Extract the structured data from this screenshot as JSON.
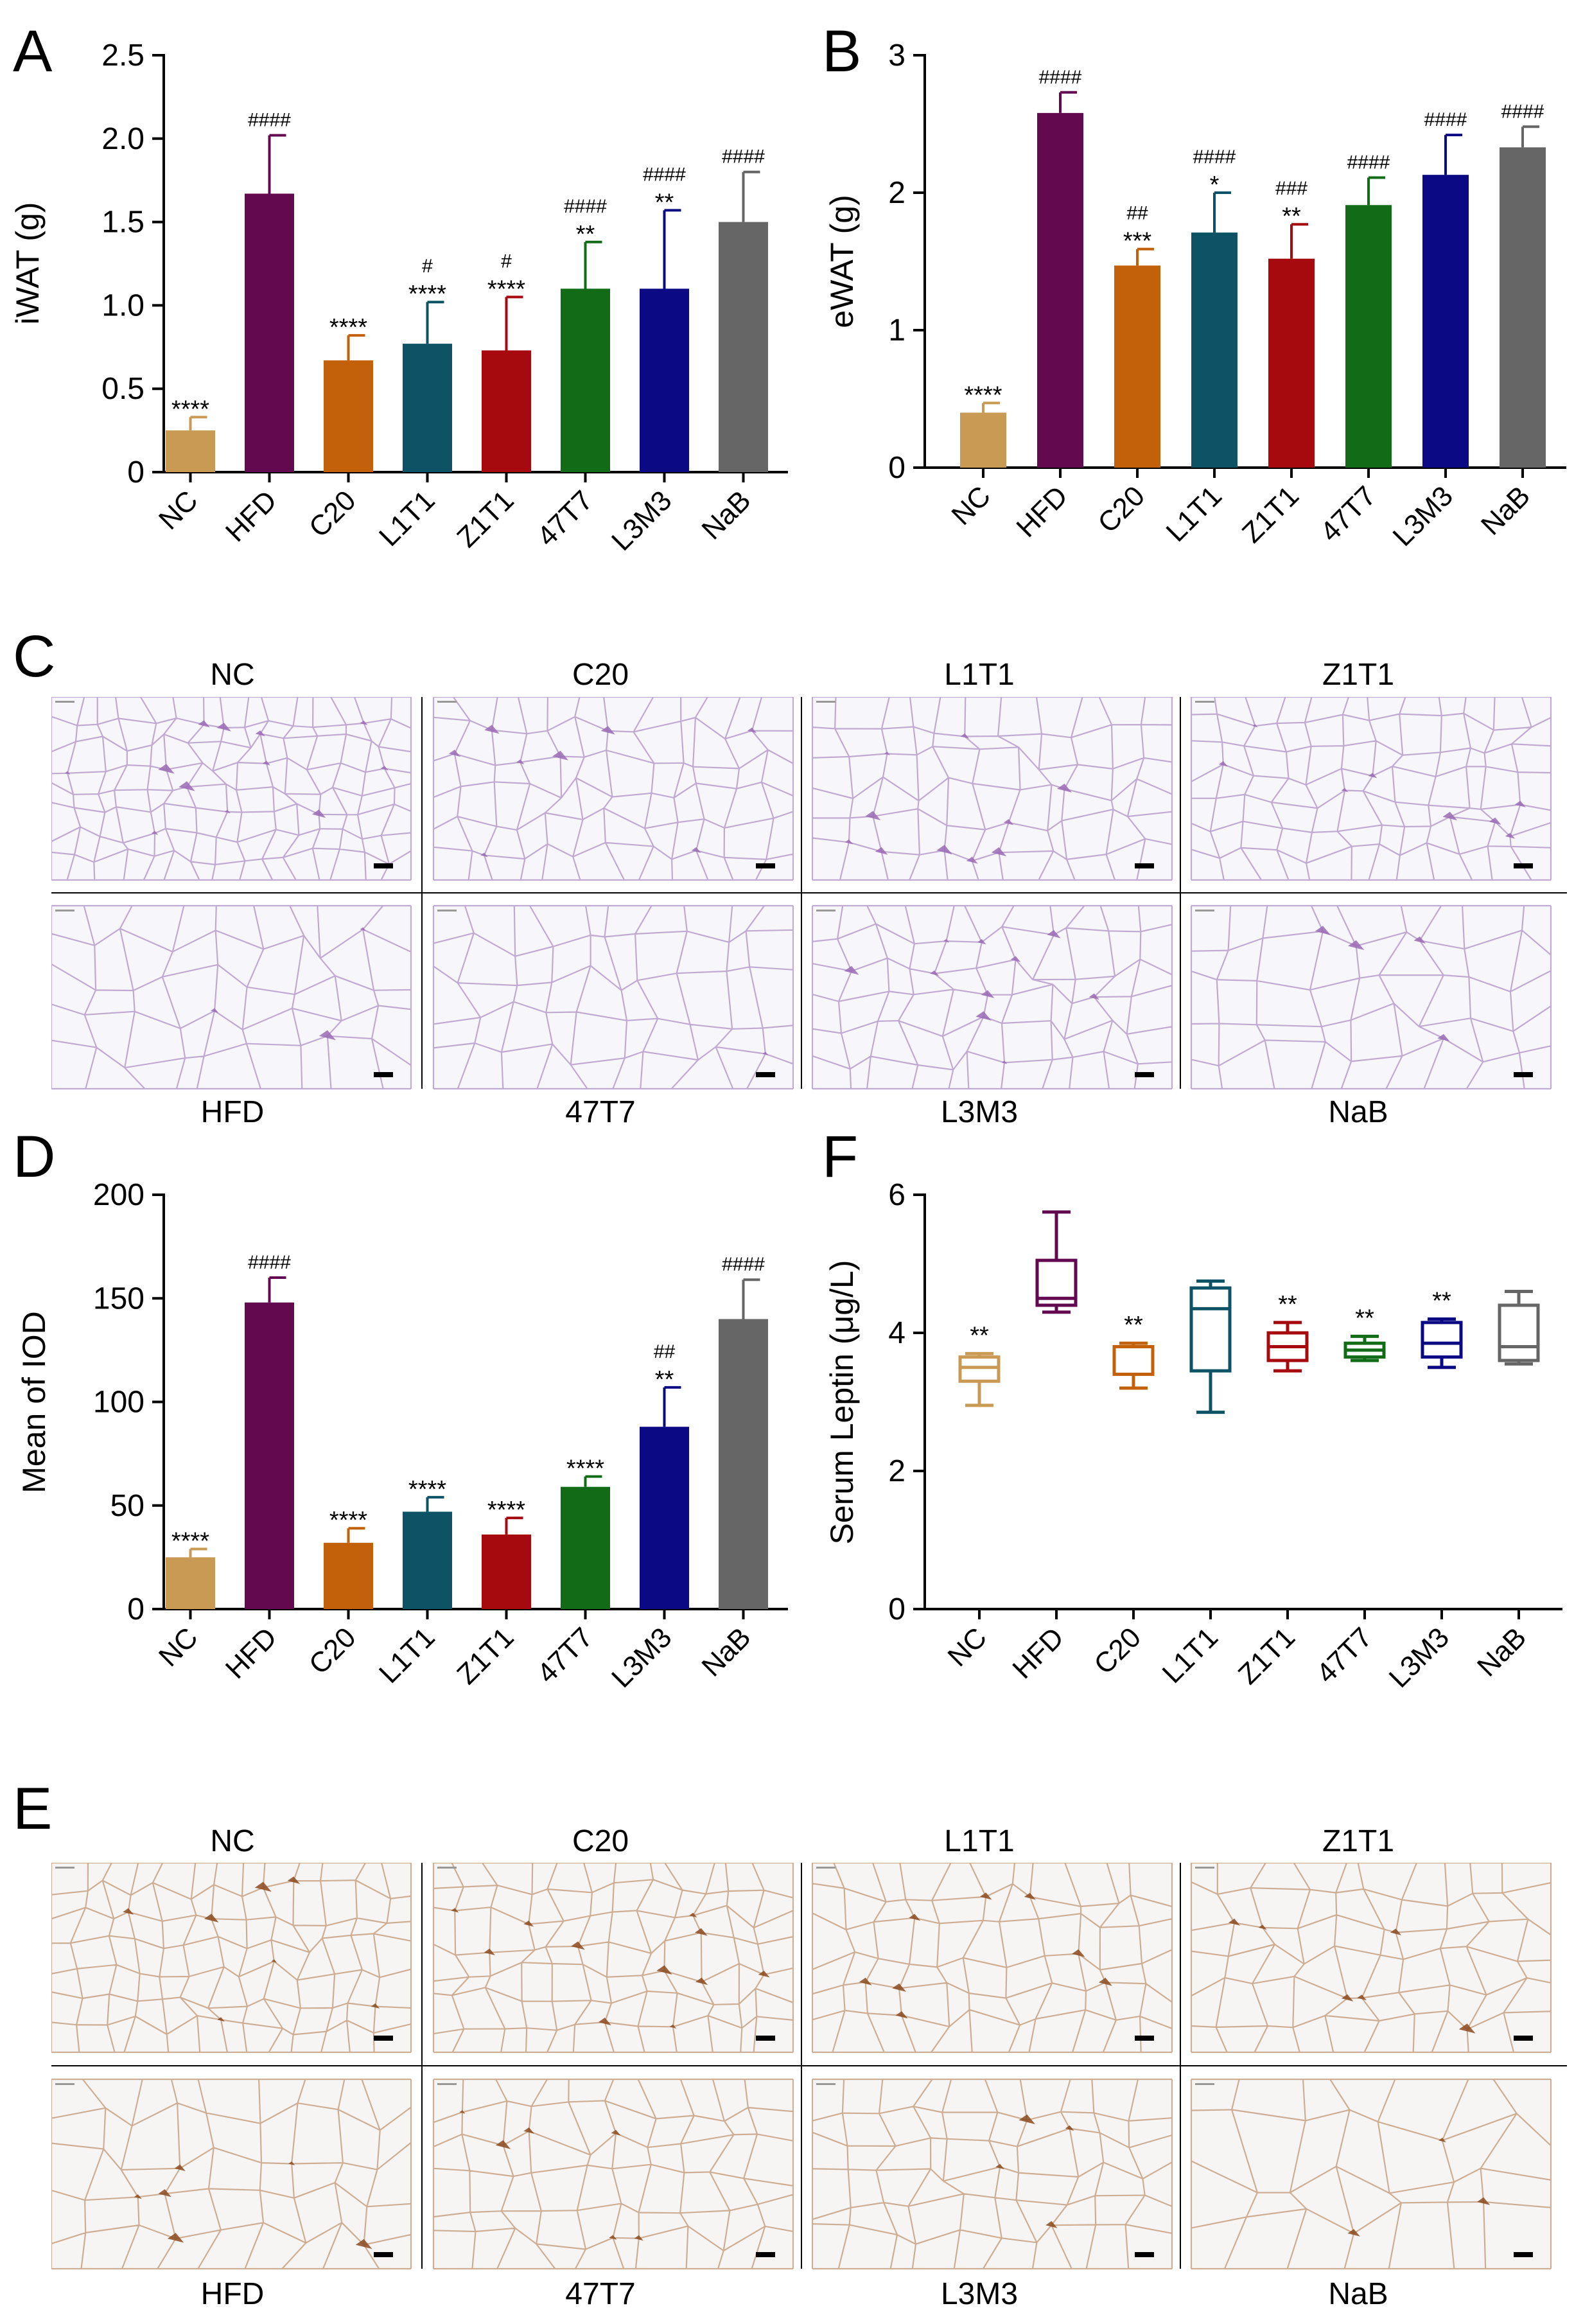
{
  "panel_letters": [
    "A",
    "B",
    "C",
    "D",
    "E",
    "F"
  ],
  "colors": {
    "NC": "#C99A54",
    "HFD": "#620950",
    "C20": "#C3600A",
    "L1T1": "#0D5265",
    "Z1T1": "#A60A0E",
    "47T7": "#126B17",
    "L3M3": "#0B0A84",
    "NaB": "#666666",
    "he_stain": "#9A6BB4",
    "ihc_stain": "#8B4A1E"
  },
  "chart_data": [
    {
      "id": "A",
      "type": "bar",
      "ylabel": "iWAT (g)",
      "ylim": [
        0,
        2.5
      ],
      "yticks": [
        "0",
        "0.5",
        "1.0",
        "1.5",
        "2.0",
        "2.5"
      ],
      "ytick_values": [
        0,
        0.5,
        1.0,
        1.5,
        2.0,
        2.5
      ],
      "categories": [
        "NC",
        "HFD",
        "C20",
        "L1T1",
        "Z1T1",
        "47T7",
        "L3M3",
        "NaB"
      ],
      "values": [
        0.25,
        1.67,
        0.67,
        0.77,
        0.73,
        1.1,
        1.1,
        1.5
      ],
      "errors": [
        0.08,
        0.35,
        0.15,
        0.25,
        0.32,
        0.28,
        0.47,
        0.3
      ],
      "annotations": [
        [
          "****"
        ],
        [
          "####"
        ],
        [
          "****"
        ],
        [
          "#",
          "****"
        ],
        [
          "#",
          "****"
        ],
        [
          "####",
          "**"
        ],
        [
          "####",
          "**"
        ],
        [
          "####"
        ]
      ]
    },
    {
      "id": "B",
      "type": "bar",
      "ylabel": "eWAT (g)",
      "ylim": [
        0,
        3
      ],
      "yticks": [
        "0",
        "1",
        "2",
        "3"
      ],
      "ytick_values": [
        0,
        1,
        2,
        3
      ],
      "categories": [
        "NC",
        "HFD",
        "C20",
        "L1T1",
        "Z1T1",
        "47T7",
        "L3M3",
        "NaB"
      ],
      "values": [
        0.4,
        2.58,
        1.47,
        1.71,
        1.52,
        1.91,
        2.13,
        2.33
      ],
      "errors": [
        0.07,
        0.15,
        0.12,
        0.29,
        0.25,
        0.2,
        0.29,
        0.15
      ],
      "annotations": [
        [
          "****"
        ],
        [
          "####"
        ],
        [
          "##",
          "***"
        ],
        [
          "####",
          "*"
        ],
        [
          "###",
          "**"
        ],
        [
          "####"
        ],
        [
          "####"
        ],
        [
          "####"
        ]
      ]
    },
    {
      "id": "D",
      "type": "bar",
      "ylabel": "Mean of IOD",
      "ylim": [
        0,
        200
      ],
      "yticks": [
        "0",
        "50",
        "100",
        "150",
        "200"
      ],
      "ytick_values": [
        0,
        50,
        100,
        150,
        200
      ],
      "categories": [
        "NC",
        "HFD",
        "C20",
        "L1T1",
        "Z1T1",
        "47T7",
        "L3M3",
        "NaB"
      ],
      "values": [
        25,
        148,
        32,
        47,
        36,
        59,
        88,
        140
      ],
      "errors": [
        4,
        12,
        7,
        7,
        8,
        5,
        19,
        19
      ],
      "annotations": [
        [
          "****"
        ],
        [
          "####"
        ],
        [
          "****"
        ],
        [
          "****"
        ],
        [
          "****"
        ],
        [
          "****"
        ],
        [
          "##",
          "**"
        ],
        [
          "####"
        ]
      ]
    },
    {
      "id": "F",
      "type": "box",
      "ylabel": "Serum Leptin (μg/L)",
      "ylim": [
        0,
        6
      ],
      "yticks": [
        "0",
        "2",
        "4",
        "6"
      ],
      "ytick_values": [
        0,
        2,
        4,
        6
      ],
      "categories": [
        "NC",
        "HFD",
        "C20",
        "L1T1",
        "Z1T1",
        "47T7",
        "L3M3",
        "NaB"
      ],
      "boxes": [
        {
          "min": 2.95,
          "q1": 3.3,
          "median": 3.5,
          "q3": 3.65,
          "max": 3.7
        },
        {
          "min": 4.3,
          "q1": 4.4,
          "median": 4.5,
          "q3": 5.05,
          "max": 5.75
        },
        {
          "min": 3.2,
          "q1": 3.4,
          "median": 3.8,
          "q3": 3.8,
          "max": 3.85
        },
        {
          "min": 2.85,
          "q1": 3.45,
          "median": 4.35,
          "q3": 4.65,
          "max": 4.75
        },
        {
          "min": 3.45,
          "q1": 3.6,
          "median": 3.8,
          "q3": 4.0,
          "max": 4.15
        },
        {
          "min": 3.6,
          "q1": 3.65,
          "median": 3.75,
          "q3": 3.85,
          "max": 3.95
        },
        {
          "min": 3.5,
          "q1": 3.65,
          "median": 3.85,
          "q3": 4.15,
          "max": 4.2
        },
        {
          "min": 3.55,
          "q1": 3.6,
          "median": 3.8,
          "q3": 4.4,
          "max": 4.6
        }
      ],
      "annotations": [
        [
          "**"
        ],
        [],
        [
          "**"
        ],
        [],
        [
          "**"
        ],
        [
          "**"
        ],
        [
          "**"
        ],
        []
      ]
    }
  ],
  "panel_C": {
    "top_labels": [
      "NC",
      "C20",
      "L1T1",
      "Z1T1"
    ],
    "bottom_labels": [
      "HFD",
      "47T7",
      "L3M3",
      "NaB"
    ]
  },
  "panel_E": {
    "top_labels": [
      "NC",
      "C20",
      "L1T1",
      "Z1T1"
    ],
    "bottom_labels": [
      "HFD",
      "47T7",
      "L3M3",
      "NaB"
    ]
  }
}
